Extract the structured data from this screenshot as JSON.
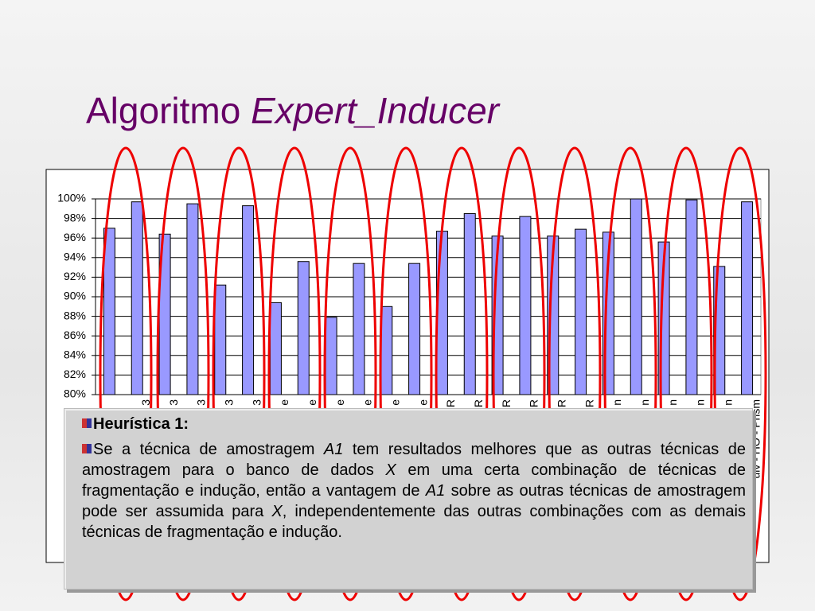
{
  "title": {
    "plain": "Algoritmo",
    "italic": "Expert_Inducer"
  },
  "chart_data": {
    "type": "bar",
    "categories": [
      null,
      "3",
      "3",
      "3",
      "3",
      "3",
      "e",
      "e",
      "e",
      "e",
      "e",
      "e",
      "R",
      "R",
      "R",
      "R",
      "R",
      "R",
      "n",
      "n",
      "n",
      "n",
      "n",
      "uiv - HO - Prism"
    ],
    "values": [
      97.0,
      99.7,
      96.4,
      99.5,
      91.2,
      99.3,
      89.4,
      93.6,
      87.9,
      93.4,
      89.0,
      93.4,
      96.7,
      98.5,
      96.2,
      98.2,
      96.2,
      96.9,
      96.6,
      100.0,
      95.6,
      99.9,
      93.1,
      99.7
    ],
    "color": "#9999ff",
    "ylim": [
      80,
      100
    ],
    "yticks": [
      {
        "value": 80,
        "label": "80%"
      },
      {
        "value": 82,
        "label": "82%"
      },
      {
        "value": 84,
        "label": "84%"
      },
      {
        "value": 86,
        "label": "86%"
      },
      {
        "value": 88,
        "label": "88%"
      },
      {
        "value": 90,
        "label": "90%"
      },
      {
        "value": 92,
        "label": "92%"
      },
      {
        "value": 94,
        "label": "94%"
      },
      {
        "value": 96,
        "label": "96%"
      },
      {
        "value": 98,
        "label": "98%"
      },
      {
        "value": 100,
        "label": "100%"
      }
    ],
    "grid": true
  },
  "note": {
    "heading": "Heurística 1:",
    "paragraph": [
      {
        "text": "Se a técnica de amostragem "
      },
      {
        "text": "A1",
        "italic": true
      },
      {
        "text": " tem resultados melhores que as outras técnicas de amostragem para o banco de dados "
      },
      {
        "text": "X",
        "italic": true
      },
      {
        "text": " em uma certa combinação de técnicas de fragmentação e indução, então a vantagem de "
      },
      {
        "text": "A1",
        "italic": true
      },
      {
        "text": " sobre as outras técnicas de amostragem pode ser assumida para "
      },
      {
        "text": "X",
        "italic": true
      },
      {
        "text": ", independentemente das outras combinações com as demais técnicas de fragmentação e indução."
      }
    ]
  }
}
